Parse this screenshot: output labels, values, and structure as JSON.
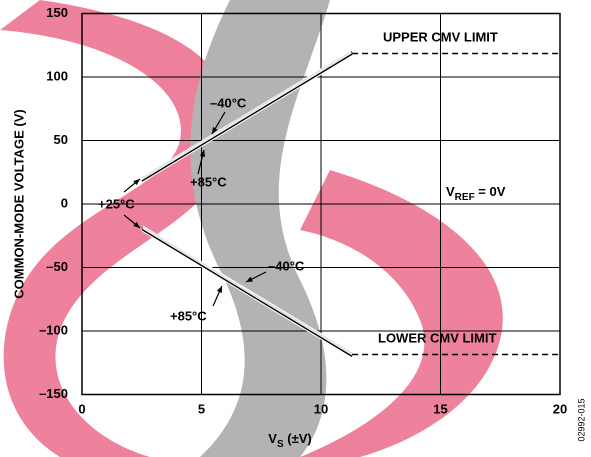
{
  "chart_data": {
    "type": "line",
    "ylabel": "COMMON-MODE VOLTAGE (V)",
    "xlabel": {
      "main": "V",
      "sub": "S",
      "rest": " (±V)"
    },
    "xlim": [
      0,
      20
    ],
    "xticks": [
      0,
      5,
      10,
      15,
      20
    ],
    "ylim": [
      -150,
      150
    ],
    "yticks": [
      {
        "value": -150,
        "label": "–150"
      },
      {
        "value": -100,
        "label": "–100"
      },
      {
        "value": -50,
        "label": "–50"
      },
      0,
      50,
      100,
      150
    ],
    "grid": true,
    "series": [
      {
        "name": "–40°C",
        "color": "#000000",
        "style": "solid",
        "x": [
          2.5,
          11.3,
          null,
          2.5,
          11.3
        ],
        "values": [
          20,
          120,
          null,
          -18,
          -118
        ]
      },
      {
        "name": "+25°C",
        "color": "#000000",
        "style": "solid",
        "x": [
          2.5,
          11.3,
          null,
          2.5,
          11.3
        ],
        "values": [
          19,
          119,
          null,
          -19,
          -119
        ]
      },
      {
        "name": "+85°C",
        "color": "#000000",
        "style": "solid",
        "x": [
          2.5,
          11.3,
          null,
          2.5,
          11.3
        ],
        "values": [
          18,
          118,
          null,
          -20,
          -120
        ]
      },
      {
        "name": "UPPER CMV LIMIT",
        "color": "#000000",
        "style": "dashed",
        "x": [
          11.3,
          20
        ],
        "values": [
          118.5,
          118.5
        ]
      },
      {
        "name": "LOWER CMV LIMIT",
        "color": "#000000",
        "style": "dashed",
        "x": [
          11.3,
          20
        ],
        "values": [
          -118.5,
          -118.5
        ]
      }
    ],
    "vref": {
      "main": "V",
      "sub": "REF",
      "rest": " = 0V"
    },
    "figure_id": "02992-015"
  }
}
